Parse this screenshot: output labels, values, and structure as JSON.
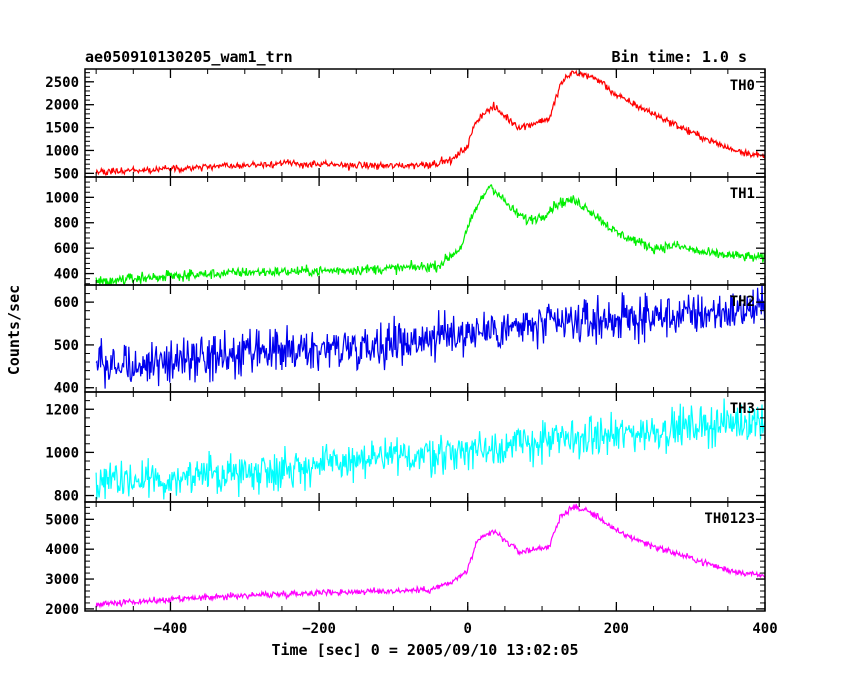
{
  "header": {
    "left": "ae050910130205_wam1_trn",
    "right": "Bin time: 1.0 s"
  },
  "chart_data": {
    "type": "line",
    "xlabel": "Time [sec] 0 = 2005/09/10 13:02:05",
    "ylabel": "Counts/sec",
    "xlim": [
      -515,
      400
    ],
    "x_ticks": [
      -400,
      -200,
      0,
      200,
      400
    ],
    "x_tick_labels": [
      "−400",
      "−200",
      "0",
      "200",
      "400"
    ],
    "panels": [
      {
        "name": "TH0",
        "color": "#ff0000",
        "ylim": [
          420,
          2780
        ],
        "y_ticks": [
          500,
          1000,
          1500,
          2000,
          2500
        ],
        "noise": 40,
        "points": [
          [
            -500,
            520
          ],
          [
            -400,
            600
          ],
          [
            -300,
            680
          ],
          [
            -250,
            720
          ],
          [
            -200,
            690
          ],
          [
            -100,
            660
          ],
          [
            -50,
            700
          ],
          [
            -20,
            800
          ],
          [
            0,
            1100
          ],
          [
            10,
            1600
          ],
          [
            20,
            1800
          ],
          [
            35,
            1950
          ],
          [
            50,
            1750
          ],
          [
            70,
            1500
          ],
          [
            90,
            1600
          ],
          [
            110,
            1700
          ],
          [
            125,
            2450
          ],
          [
            140,
            2700
          ],
          [
            160,
            2650
          ],
          [
            180,
            2500
          ],
          [
            200,
            2200
          ],
          [
            250,
            1800
          ],
          [
            300,
            1400
          ],
          [
            350,
            1050
          ],
          [
            400,
            860
          ]
        ]
      },
      {
        "name": "TH1",
        "color": "#00ee00",
        "ylim": [
          310,
          1160
        ],
        "y_ticks": [
          400,
          600,
          800,
          1000
        ],
        "noise": 20,
        "points": [
          [
            -500,
            340
          ],
          [
            -400,
            380
          ],
          [
            -300,
            410
          ],
          [
            -200,
            420
          ],
          [
            -100,
            440
          ],
          [
            -40,
            460
          ],
          [
            -10,
            600
          ],
          [
            10,
            900
          ],
          [
            30,
            1100
          ],
          [
            45,
            1000
          ],
          [
            60,
            900
          ],
          [
            80,
            820
          ],
          [
            100,
            850
          ],
          [
            120,
            950
          ],
          [
            140,
            980
          ],
          [
            160,
            920
          ],
          [
            180,
            820
          ],
          [
            200,
            720
          ],
          [
            250,
            600
          ],
          [
            280,
            620
          ],
          [
            320,
            560
          ],
          [
            400,
            520
          ]
        ]
      },
      {
        "name": "TH2",
        "color": "#0000ee",
        "ylim": [
          390,
          640
        ],
        "y_ticks": [
          400,
          500,
          600
        ],
        "noise": 25,
        "points": [
          [
            -500,
            450
          ],
          [
            -400,
            460
          ],
          [
            -300,
            475
          ],
          [
            -200,
            490
          ],
          [
            -100,
            505
          ],
          [
            0,
            530
          ],
          [
            100,
            545
          ],
          [
            200,
            560
          ],
          [
            300,
            570
          ],
          [
            400,
            585
          ]
        ]
      },
      {
        "name": "TH3",
        "color": "#00ffff",
        "ylim": [
          770,
          1280
        ],
        "y_ticks": [
          800,
          1000,
          1200
        ],
        "noise": 45,
        "points": [
          [
            -500,
            850
          ],
          [
            -400,
            880
          ],
          [
            -300,
            910
          ],
          [
            -200,
            940
          ],
          [
            -100,
            975
          ],
          [
            0,
            1010
          ],
          [
            100,
            1050
          ],
          [
            200,
            1080
          ],
          [
            300,
            1120
          ],
          [
            400,
            1150
          ]
        ]
      },
      {
        "name": "TH0123",
        "color": "#ff00ff",
        "ylim": [
          1930,
          5580
        ],
        "y_ticks": [
          2000,
          3000,
          4000,
          5000
        ],
        "noise": 55,
        "points": [
          [
            -500,
            2150
          ],
          [
            -400,
            2300
          ],
          [
            -300,
            2450
          ],
          [
            -200,
            2550
          ],
          [
            -100,
            2600
          ],
          [
            -50,
            2650
          ],
          [
            -20,
            2900
          ],
          [
            0,
            3300
          ],
          [
            10,
            4100
          ],
          [
            20,
            4400
          ],
          [
            35,
            4600
          ],
          [
            50,
            4300
          ],
          [
            70,
            3900
          ],
          [
            90,
            4000
          ],
          [
            110,
            4100
          ],
          [
            125,
            5100
          ],
          [
            140,
            5400
          ],
          [
            160,
            5300
          ],
          [
            180,
            5000
          ],
          [
            200,
            4600
          ],
          [
            250,
            4100
          ],
          [
            300,
            3700
          ],
          [
            350,
            3300
          ],
          [
            400,
            3100
          ]
        ]
      }
    ]
  }
}
